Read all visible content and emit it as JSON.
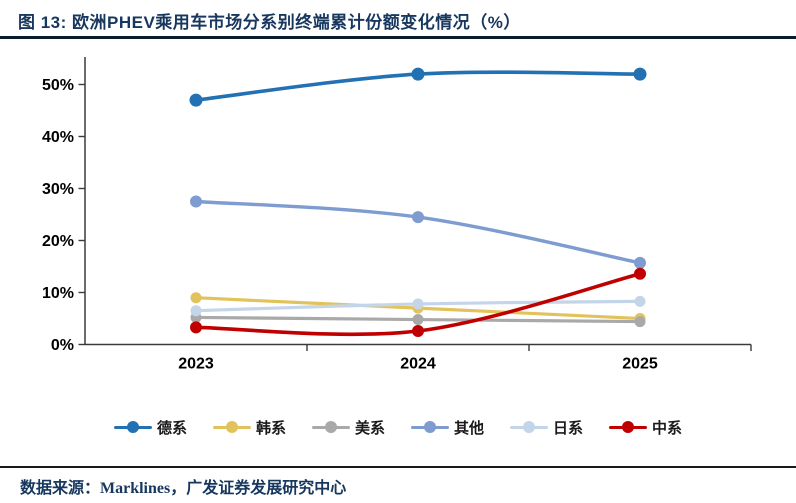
{
  "header": {
    "title": "图 13: 欧洲PHEV乘用车市场分系别终端累计份额变化情况（%）"
  },
  "chart_data": {
    "type": "line",
    "title": "欧洲PHEV乘用车市场分系别终端累计份额变化情况（%）",
    "categories": [
      "2023",
      "2024",
      "2025"
    ],
    "series": [
      {
        "name": "德系",
        "color": "#2271B3",
        "values": [
          47.0,
          52.0,
          52.0
        ],
        "marker_r": 6.5,
        "width": 3.6
      },
      {
        "name": "韩系",
        "color": "#E2C35B",
        "values": [
          9.0,
          7.0,
          5.0
        ],
        "marker_r": 5.5,
        "width": 3.2
      },
      {
        "name": "美系",
        "color": "#A9A9A9",
        "values": [
          5.2,
          4.8,
          4.4
        ],
        "marker_r": 5.5,
        "width": 3.2
      },
      {
        "name": "其他",
        "color": "#7E9CD0",
        "values": [
          27.5,
          24.5,
          15.7
        ],
        "marker_r": 6.0,
        "width": 3.4
      },
      {
        "name": "日系",
        "color": "#C4D5EA",
        "values": [
          6.5,
          7.8,
          8.3
        ],
        "marker_r": 5.5,
        "width": 3.2
      },
      {
        "name": "中系",
        "color": "#C00000",
        "values": [
          3.3,
          2.6,
          13.6
        ],
        "marker_r": 6.0,
        "width": 3.6
      }
    ],
    "ylim": [
      0,
      50
    ],
    "y_tick_step": 10,
    "y_tick_labels": [
      "0%",
      "10%",
      "20%",
      "30%",
      "40%",
      "50%"
    ],
    "xlabel": "",
    "ylabel": "",
    "grid": false,
    "smooth_lines": true,
    "legend_position": "bottom"
  },
  "footer": {
    "source_text": "数据来源：Marklines，广发证券发展研究中心"
  },
  "colors": {
    "title_navy": "#17375E",
    "title_rule": "#0C1C30",
    "axis": "#3a3a3a",
    "tick_label": "#000000"
  }
}
